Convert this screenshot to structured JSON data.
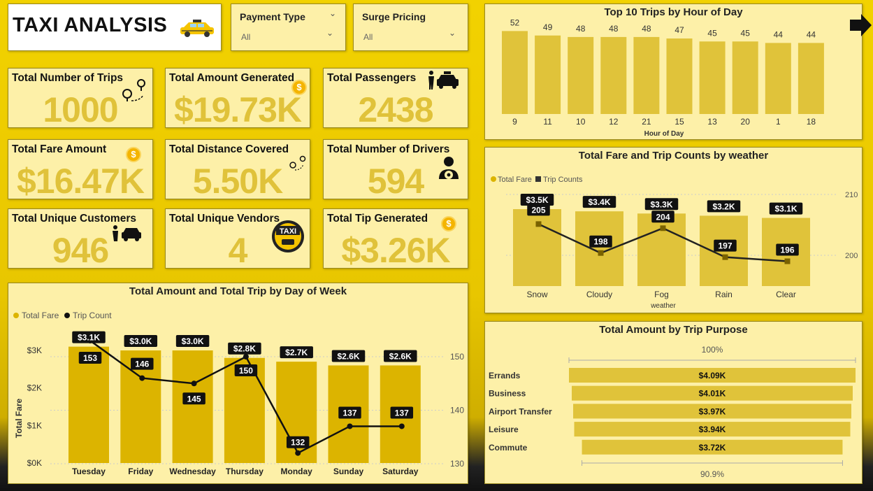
{
  "header": {
    "title": "TAXI ANALYSIS"
  },
  "slicers": [
    {
      "label": "Payment Type",
      "value": "All"
    },
    {
      "label": "Surge Pricing",
      "value": "All"
    }
  ],
  "kpis": {
    "trips": {
      "label": "Total Number of Trips",
      "value": "1000"
    },
    "amount": {
      "label": "Total Amount Generated",
      "value": "$19.73K"
    },
    "passengers": {
      "label": "Total Passengers",
      "value": "2438"
    },
    "fare": {
      "label": "Total Fare Amount",
      "value": "$16.47K"
    },
    "distance": {
      "label": "Total Distance Covered",
      "value": "5.50K"
    },
    "drivers": {
      "label": "Total Number of Drivers",
      "value": "594"
    },
    "customers": {
      "label": "Total Unique Customers",
      "value": "946"
    },
    "vendors": {
      "label": "Total Unique Vendors",
      "value": "4"
    },
    "tip": {
      "label": "Total Tip Generated",
      "value": "$3.26K"
    }
  },
  "taxi_badge": "TAXI",
  "colors": {
    "gold": "#e0c33a",
    "dark_gold": "#dcb400",
    "panel": "#fdf0a8"
  },
  "chart_data": [
    {
      "id": "hour_chart",
      "type": "bar",
      "title": "Top 10 Trips by Hour of Day",
      "xlabel": "Hour of Day",
      "ylabel": "",
      "categories": [
        "9",
        "11",
        "10",
        "12",
        "21",
        "15",
        "13",
        "20",
        "1",
        "18"
      ],
      "values": [
        52,
        49,
        48,
        48,
        48,
        47,
        45,
        45,
        44,
        44
      ],
      "ylim": [
        0,
        55
      ]
    },
    {
      "id": "weather_chart",
      "type": "bar",
      "title": "Total Fare and Trip Counts by weather",
      "xlabel": "weather",
      "legend": [
        "Total Fare",
        "Trip Counts"
      ],
      "categories": [
        "Snow",
        "Cloudy",
        "Fog",
        "Rain",
        "Clear"
      ],
      "series": [
        {
          "name": "Total Fare",
          "type": "bar",
          "values": [
            3.5,
            3.4,
            3.3,
            3.2,
            3.1
          ],
          "labels": [
            "$3.5K",
            "$3.4K",
            "$3.3K",
            "$3.2K",
            "$3.1K"
          ]
        },
        {
          "name": "Trip Counts",
          "type": "line",
          "values": [
            205,
            198,
            204,
            197,
            196
          ],
          "labels": [
            "205",
            "198",
            "204",
            "197",
            "196"
          ]
        }
      ],
      "y2_ticks": [
        "210",
        "200"
      ],
      "y2lim": [
        190,
        212
      ]
    },
    {
      "id": "day_chart",
      "type": "bar",
      "title": "Total Amount and Total Trip by Day of Week",
      "ylabel": "Total Fare",
      "legend": [
        "Total Fare",
        "Trip Count"
      ],
      "categories": [
        "Tuesday",
        "Friday",
        "Wednesday",
        "Thursday",
        "Monday",
        "Sunday",
        "Saturday"
      ],
      "series": [
        {
          "name": "Total Fare",
          "type": "bar",
          "values": [
            3.1,
            3.0,
            3.0,
            2.8,
            2.7,
            2.6,
            2.6
          ],
          "labels": [
            "$3.1K",
            "$3.0K",
            "$3.0K",
            "$2.8K",
            "$2.7K",
            "$2.6K",
            "$2.6K"
          ]
        },
        {
          "name": "Trip Count",
          "type": "line",
          "values": [
            153,
            146,
            145,
            150,
            132,
            137,
            137
          ],
          "labels": [
            "153",
            "146",
            "145",
            "150",
            "132",
            "137",
            "137"
          ]
        }
      ],
      "y_ticks": [
        "$3K",
        "$2K",
        "$1K",
        "$0K"
      ],
      "y2_ticks": [
        "150",
        "140",
        "130"
      ],
      "ylim": [
        0,
        3
      ],
      "y2lim": [
        130,
        150
      ]
    },
    {
      "id": "purpose_chart",
      "type": "bar",
      "orientation": "funnel",
      "title": "Total Amount by Trip Purpose",
      "categories": [
        "Errands",
        "Business",
        "Airport Transfer",
        "Leisure",
        "Commute"
      ],
      "values": [
        4.09,
        4.01,
        3.97,
        3.94,
        3.72
      ],
      "labels": [
        "$4.09K",
        "$4.01K",
        "$3.97K",
        "$3.94K",
        "$3.72K"
      ],
      "top_label": "100%",
      "bottom_label": "90.9%"
    }
  ]
}
